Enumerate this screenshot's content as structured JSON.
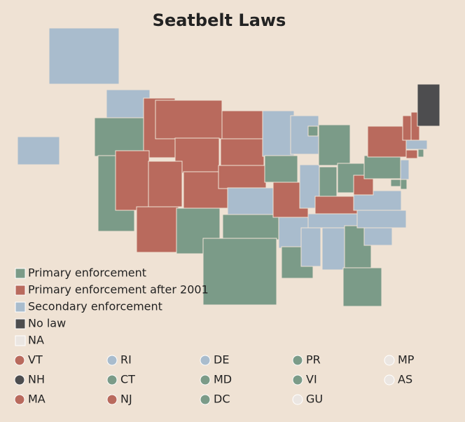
{
  "title": "Seatbelt Laws",
  "legend": [
    {
      "label": "Primary enforcement",
      "color": "#7b9b88"
    },
    {
      "label": "Primary enforcement after 2001",
      "color": "#b96a5d"
    },
    {
      "label": "Secondary enforcement",
      "color": "#a9bccd"
    },
    {
      "label": "No law",
      "color": "#4d4d4f"
    },
    {
      "label": "NA",
      "color": "#ebe6e2"
    }
  ],
  "states": [
    2,
    0,
    0,
    1,
    1,
    1,
    1,
    1,
    1,
    1,
    0,
    1,
    1,
    1,
    2,
    0,
    0,
    2,
    0,
    1,
    2,
    0,
    2,
    2,
    0,
    0,
    0,
    1,
    2,
    2,
    2,
    0,
    0,
    2,
    2,
    2,
    1,
    0,
    1,
    0,
    0,
    2,
    1,
    0,
    2,
    1,
    1,
    3,
    2,
    2,
    0
  ],
  "territories": [
    {
      "label": "VT",
      "law": 1
    },
    {
      "label": "RI",
      "law": 2
    },
    {
      "label": "DE",
      "law": 2
    },
    {
      "label": "PR",
      "law": 0
    },
    {
      "label": "MP",
      "law": 4
    },
    {
      "label": "NH",
      "law": 3
    },
    {
      "label": "CT",
      "law": 0
    },
    {
      "label": "MD",
      "law": 0
    },
    {
      "label": "VI",
      "law": 0
    },
    {
      "label": "AS",
      "law": 4
    },
    {
      "label": "MA",
      "law": 1
    },
    {
      "label": "NJ",
      "law": 1
    },
    {
      "label": "DC",
      "law": 0
    },
    {
      "label": "GU",
      "law": 4
    }
  ]
}
